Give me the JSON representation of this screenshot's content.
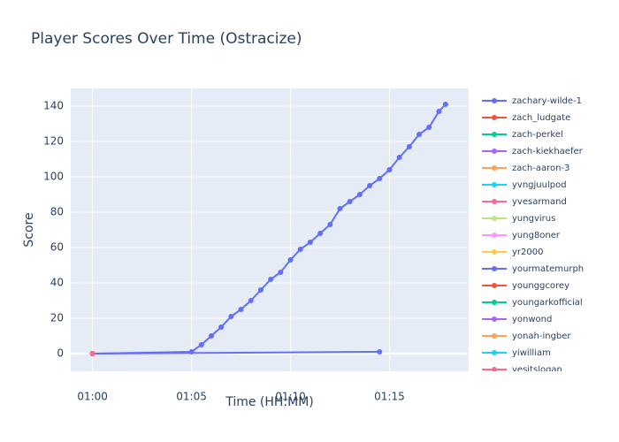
{
  "chart_data": {
    "type": "line",
    "title": "Player Scores Over Time (Ostracize)",
    "x_label": "Time (HH:MM)",
    "y_label": "Score",
    "xlim": [
      58.9,
      79.0
    ],
    "ylim": [
      -10,
      150
    ],
    "xticks": [
      {
        "value": 60,
        "label": "01:00"
      },
      {
        "value": 65,
        "label": "01:05"
      },
      {
        "value": 70,
        "label": "01:10"
      },
      {
        "value": 75,
        "label": "01:15"
      }
    ],
    "yticks": [
      0,
      20,
      40,
      60,
      80,
      100,
      120,
      140
    ],
    "grid": true,
    "legend": "right",
    "series": [
      {
        "name": "zachary-wilde-1",
        "color": "#636efa",
        "x": [
          60,
          65,
          65.5,
          66,
          66.5,
          67,
          67.5,
          68,
          68.5,
          69,
          69.5,
          70,
          70.5,
          71,
          71.5,
          72,
          72.5,
          73,
          73.5,
          74,
          74.5,
          75,
          75.5,
          76,
          76.5,
          77,
          77.5,
          77.83
        ],
        "values": [
          0,
          1,
          5,
          10,
          15,
          21,
          25,
          30,
          36,
          42,
          46,
          53,
          59,
          63,
          68,
          73,
          82,
          86,
          90,
          95,
          99,
          104,
          111,
          117,
          124,
          128,
          137,
          141
        ]
      },
      {
        "name": "zach_ludgate",
        "color": "#EF553B",
        "x": [
          60
        ],
        "values": [
          0
        ]
      },
      {
        "name": "zach-perkel",
        "color": "#00cc96",
        "x": [
          60
        ],
        "values": [
          0
        ]
      },
      {
        "name": "zach-kiekhaefer",
        "color": "#ab63fa",
        "x": [
          60
        ],
        "values": [
          0
        ]
      },
      {
        "name": "zach-aaron-3",
        "color": "#FFA15A",
        "x": [
          60
        ],
        "values": [
          0
        ]
      },
      {
        "name": "yvngjuulpod",
        "color": "#19d3f3",
        "x": [
          60
        ],
        "values": [
          0
        ]
      },
      {
        "name": "yvesarmand",
        "color": "#FF6692",
        "x": [
          60
        ],
        "values": [
          0
        ]
      },
      {
        "name": "yungvirus",
        "color": "#B6E880",
        "x": [
          60
        ],
        "values": [
          0
        ]
      },
      {
        "name": "yung8oner",
        "color": "#FF97FF",
        "x": [
          60
        ],
        "values": [
          0
        ]
      },
      {
        "name": "yr2000",
        "color": "#FECB52",
        "x": [
          60
        ],
        "values": [
          0
        ]
      },
      {
        "name": "yourmatemurph",
        "color": "#636efa",
        "x": [
          60,
          74.5
        ],
        "values": [
          0,
          1
        ]
      },
      {
        "name": "younggcorey",
        "color": "#EF553B",
        "x": [
          60
        ],
        "values": [
          0
        ]
      },
      {
        "name": "youngarkofficial",
        "color": "#00cc96",
        "x": [
          60
        ],
        "values": [
          0
        ]
      },
      {
        "name": "yonwond",
        "color": "#ab63fa",
        "x": [
          60
        ],
        "values": [
          0
        ]
      },
      {
        "name": "yonah-ingber",
        "color": "#FFA15A",
        "x": [
          60
        ],
        "values": [
          0
        ]
      },
      {
        "name": "yiwilliam",
        "color": "#19d3f3",
        "x": [
          60
        ],
        "values": [
          0
        ]
      },
      {
        "name": "yesitslogan",
        "color": "#FF6692",
        "x": [
          60
        ],
        "values": [
          0
        ]
      }
    ]
  }
}
